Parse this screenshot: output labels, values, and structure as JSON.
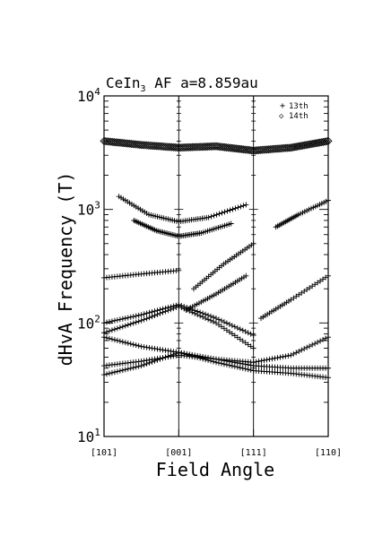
{
  "chart_data": {
    "type": "scatter",
    "title_main": "CeIn",
    "title_sub": "3",
    "title_rest": " AF  a=8.859au",
    "ylabel": "dHvA Frequency (T)",
    "xlabel": "Field Angle",
    "yscale": "log",
    "ylim": [
      10,
      10000
    ],
    "y_ticks": [
      {
        "base": "10",
        "exp": "1",
        "value": 10
      },
      {
        "base": "10",
        "exp": "2",
        "value": 100
      },
      {
        "base": "10",
        "exp": "3",
        "value": 1000
      },
      {
        "base": "10",
        "exp": "4",
        "value": 10000
      }
    ],
    "x_ticks": [
      "[101]",
      "[001]",
      "[111]",
      "[110]"
    ],
    "xlim": [
      0,
      3
    ],
    "grid": false,
    "legend": {
      "position": "top-right",
      "items": [
        {
          "marker": "+",
          "label": "13th"
        },
        {
          "marker": "◇",
          "label": "14th"
        }
      ]
    },
    "series": [
      {
        "name": "13th",
        "marker": "+",
        "branches": [
          {
            "x": [
              0,
              0.5,
              1.0,
              1.5,
              2.0,
              2.5,
              3.0
            ],
            "y": [
              35,
              42,
              55,
              45,
              38,
              36,
              33
            ]
          },
          {
            "x": [
              0,
              0.5,
              1.0,
              1.5,
              2.0,
              2.5,
              3.0
            ],
            "y": [
              42,
              46,
              52,
              48,
              42,
              40,
              40
            ]
          },
          {
            "x": [
              0,
              0.5,
              1.0,
              1.5,
              2.0,
              2.5,
              3.0
            ],
            "y": [
              75,
              62,
              55,
              48,
              45,
              52,
              75
            ]
          },
          {
            "x": [
              0,
              0.5,
              1.0,
              1.5,
              2.0
            ],
            "y": [
              82,
              105,
              140,
              100,
              60
            ]
          },
          {
            "x": [
              0,
              0.5,
              1.0,
              1.5,
              2.0
            ],
            "y": [
              100,
              118,
              145,
              110,
              78
            ]
          },
          {
            "x": [
              0,
              0.5,
              1.0
            ],
            "y": [
              250,
              270,
              290
            ]
          },
          {
            "x": [
              0.2,
              0.6,
              1.0,
              1.4,
              1.9
            ],
            "y": [
              1300,
              900,
              780,
              850,
              1100
            ]
          },
          {
            "x": [
              0.4,
              0.7,
              1.0,
              1.3,
              1.7
            ],
            "y": [
              800,
              650,
              580,
              620,
              750
            ]
          },
          {
            "x": [
              1.2,
              1.6,
              2.0
            ],
            "y": [
              200,
              330,
              500
            ]
          },
          {
            "x": [
              1.1,
              1.5,
              1.9
            ],
            "y": [
              130,
              180,
              260
            ]
          },
          {
            "x": [
              2.3,
              2.6,
              3.0
            ],
            "y": [
              700,
              900,
              1200
            ]
          },
          {
            "x": [
              2.1,
              2.5,
              3.0
            ],
            "y": [
              110,
              160,
              260
            ]
          }
        ]
      },
      {
        "name": "14th",
        "marker": "◇",
        "branches": [
          {
            "x": [
              0,
              0.5,
              1.0,
              1.5,
              2.0,
              2.5,
              3.0
            ],
            "y": [
              4000,
              3700,
              3500,
              3600,
              3300,
              3500,
              4000
            ]
          }
        ]
      }
    ]
  }
}
